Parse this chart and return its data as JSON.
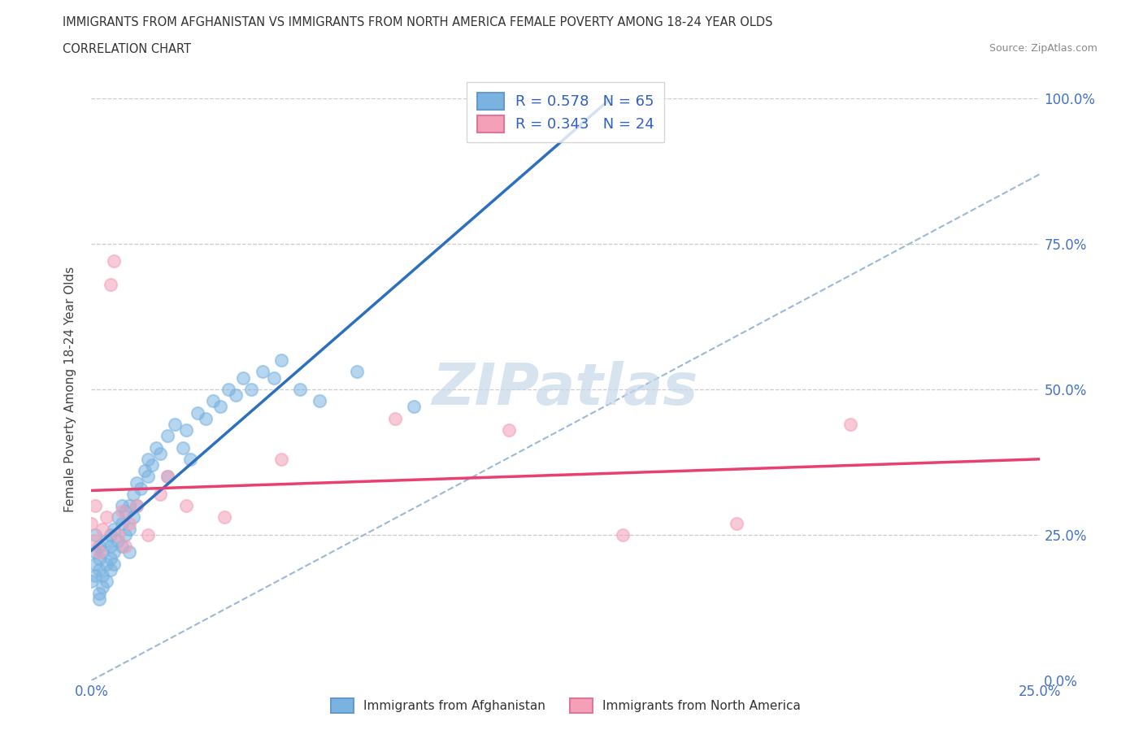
{
  "title_line1": "IMMIGRANTS FROM AFGHANISTAN VS IMMIGRANTS FROM NORTH AMERICA FEMALE POVERTY AMONG 18-24 YEAR OLDS",
  "title_line2": "CORRELATION CHART",
  "source_text": "Source: ZipAtlas.com",
  "ylabel": "Female Poverty Among 18-24 Year Olds",
  "xlim": [
    0.0,
    0.25
  ],
  "ylim": [
    0.0,
    1.0
  ],
  "xtick_vals": [
    0.0,
    0.25
  ],
  "xtick_labels": [
    "0.0%",
    "25.0%"
  ],
  "ytick_vals": [
    0.0,
    0.25,
    0.5,
    0.75,
    1.0
  ],
  "ytick_labels": [
    "0.0%",
    "25.0%",
    "50.0%",
    "75.0%",
    "100.0%"
  ],
  "afghanistan_color": "#7bb3e0",
  "north_america_color": "#f4a0b8",
  "afghanistan_line_color": "#2c6fbe",
  "north_america_line_color": "#e84070",
  "reference_line_color": "#9cb8d8",
  "R_afghanistan": 0.578,
  "N_afghanistan": 65,
  "R_north_america": 0.343,
  "N_north_america": 24,
  "legend_label_afghanistan": "Immigrants from Afghanistan",
  "legend_label_north_america": "Immigrants from North America",
  "watermark_text": "ZIPatlas",
  "watermark_color": "#c8d8ea",
  "grid_color": "#cccccc",
  "axis_tick_color": "#4472c4",
  "title_color": "#333333",
  "source_color": "#888888",
  "legend_text_color": "#3060c0",
  "afg_x": [
    0.0,
    0.001,
    0.001,
    0.001,
    0.001,
    0.002,
    0.002,
    0.002,
    0.002,
    0.002,
    0.003,
    0.003,
    0.003,
    0.004,
    0.004,
    0.004,
    0.005,
    0.005,
    0.005,
    0.005,
    0.006,
    0.006,
    0.006,
    0.007,
    0.007,
    0.008,
    0.008,
    0.008,
    0.009,
    0.009,
    0.01,
    0.01,
    0.01,
    0.011,
    0.011,
    0.012,
    0.012,
    0.013,
    0.014,
    0.015,
    0.015,
    0.016,
    0.017,
    0.018,
    0.02,
    0.02,
    0.022,
    0.024,
    0.025,
    0.026,
    0.028,
    0.03,
    0.032,
    0.034,
    0.036,
    0.038,
    0.04,
    0.042,
    0.045,
    0.048,
    0.05,
    0.055,
    0.06,
    0.07,
    0.085
  ],
  "afg_y": [
    0.17,
    0.2,
    0.22,
    0.18,
    0.25,
    0.14,
    0.19,
    0.21,
    0.15,
    0.23,
    0.18,
    0.22,
    0.16,
    0.2,
    0.24,
    0.17,
    0.19,
    0.23,
    0.25,
    0.21,
    0.22,
    0.26,
    0.2,
    0.24,
    0.28,
    0.23,
    0.27,
    0.3,
    0.25,
    0.29,
    0.26,
    0.3,
    0.22,
    0.28,
    0.32,
    0.3,
    0.34,
    0.33,
    0.36,
    0.35,
    0.38,
    0.37,
    0.4,
    0.39,
    0.35,
    0.42,
    0.44,
    0.4,
    0.43,
    0.38,
    0.46,
    0.45,
    0.48,
    0.47,
    0.5,
    0.49,
    0.52,
    0.5,
    0.53,
    0.52,
    0.55,
    0.5,
    0.48,
    0.53,
    0.47
  ],
  "nam_x": [
    0.0,
    0.001,
    0.001,
    0.002,
    0.003,
    0.004,
    0.005,
    0.006,
    0.007,
    0.008,
    0.009,
    0.01,
    0.012,
    0.015,
    0.018,
    0.02,
    0.025,
    0.035,
    0.05,
    0.08,
    0.11,
    0.14,
    0.17,
    0.2
  ],
  "nam_y": [
    0.27,
    0.24,
    0.3,
    0.22,
    0.26,
    0.28,
    0.68,
    0.72,
    0.25,
    0.29,
    0.23,
    0.27,
    0.3,
    0.25,
    0.32,
    0.35,
    0.3,
    0.28,
    0.38,
    0.45,
    0.43,
    0.25,
    0.27,
    0.44
  ]
}
